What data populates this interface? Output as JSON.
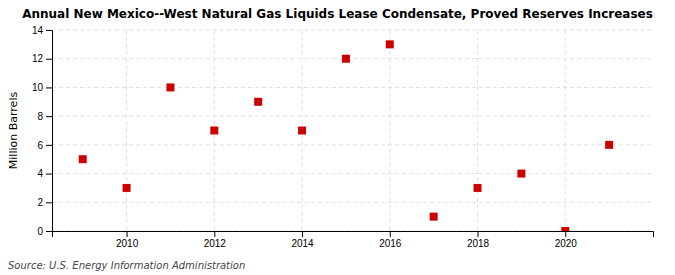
{
  "chart_data": {
    "type": "scatter",
    "title": "Annual New Mexico--West Natural Gas Liquids Lease Condensate, Proved Reserves Increases",
    "ylabel": "Million Barrels",
    "source": "Source: U.S. Energy Information Administration",
    "x": [
      2009,
      2010,
      2011,
      2012,
      2013,
      2014,
      2015,
      2016,
      2017,
      2018,
      2019,
      2020,
      2021
    ],
    "values": [
      5,
      3,
      10,
      7,
      9,
      7,
      12,
      13,
      1,
      3,
      4,
      0,
      6
    ],
    "color": "#cc0000",
    "marker": "square",
    "xlim": [
      2008.3,
      2022.0
    ],
    "ylim": [
      0,
      14
    ],
    "xticks": [
      2010,
      2012,
      2014,
      2016,
      2018,
      2020
    ],
    "yticks": [
      0,
      2,
      4,
      6,
      8,
      10,
      12,
      14
    ],
    "grid": true
  }
}
